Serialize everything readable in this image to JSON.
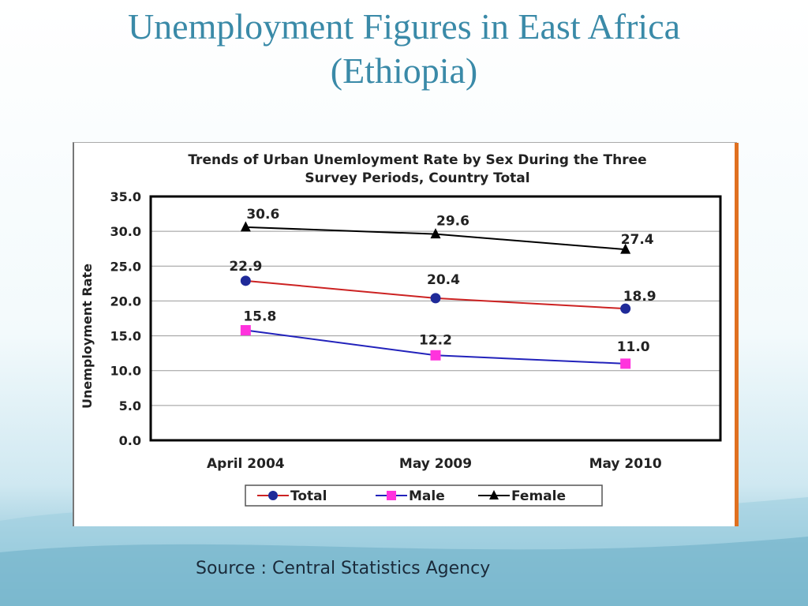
{
  "slide": {
    "title_line1": "Unemployment Figures in East Africa",
    "title_line2": "(Ethiopia)",
    "source": "Source : Central Statistics Agency",
    "title_color": "#3a8aa8"
  },
  "chart_data": {
    "type": "line",
    "title_line1": "Trends of Urban Unemloyment Rate by Sex During the Three",
    "title_line2": "Survey Periods, Country Total",
    "ylabel": "Unemployment Rate",
    "xlabel": "",
    "categories": [
      "April 2004",
      "May 2009",
      "May 2010"
    ],
    "ylim": [
      0,
      35
    ],
    "yticks": [
      "0.0",
      "5.0",
      "10.0",
      "15.0",
      "20.0",
      "25.0",
      "30.0",
      "35.0"
    ],
    "grid": true,
    "legend_position": "bottom",
    "series": [
      {
        "name": "Total",
        "values": [
          22.9,
          20.4,
          18.9
        ],
        "labels": [
          "22.9",
          "20.4",
          "18.9"
        ],
        "color": "#cc2222",
        "marker_color": "#1f2a99",
        "marker": "circle"
      },
      {
        "name": "Male",
        "values": [
          15.8,
          12.2,
          11.0
        ],
        "labels": [
          "15.8",
          "12.2",
          "11.0"
        ],
        "color": "#2222bb",
        "marker_color": "#ff33dd",
        "marker": "square"
      },
      {
        "name": "Female",
        "values": [
          30.6,
          29.6,
          27.4
        ],
        "labels": [
          "30.6",
          "29.6",
          "27.4"
        ],
        "color": "#000000",
        "marker_color": "#000000",
        "marker": "triangle"
      }
    ]
  }
}
